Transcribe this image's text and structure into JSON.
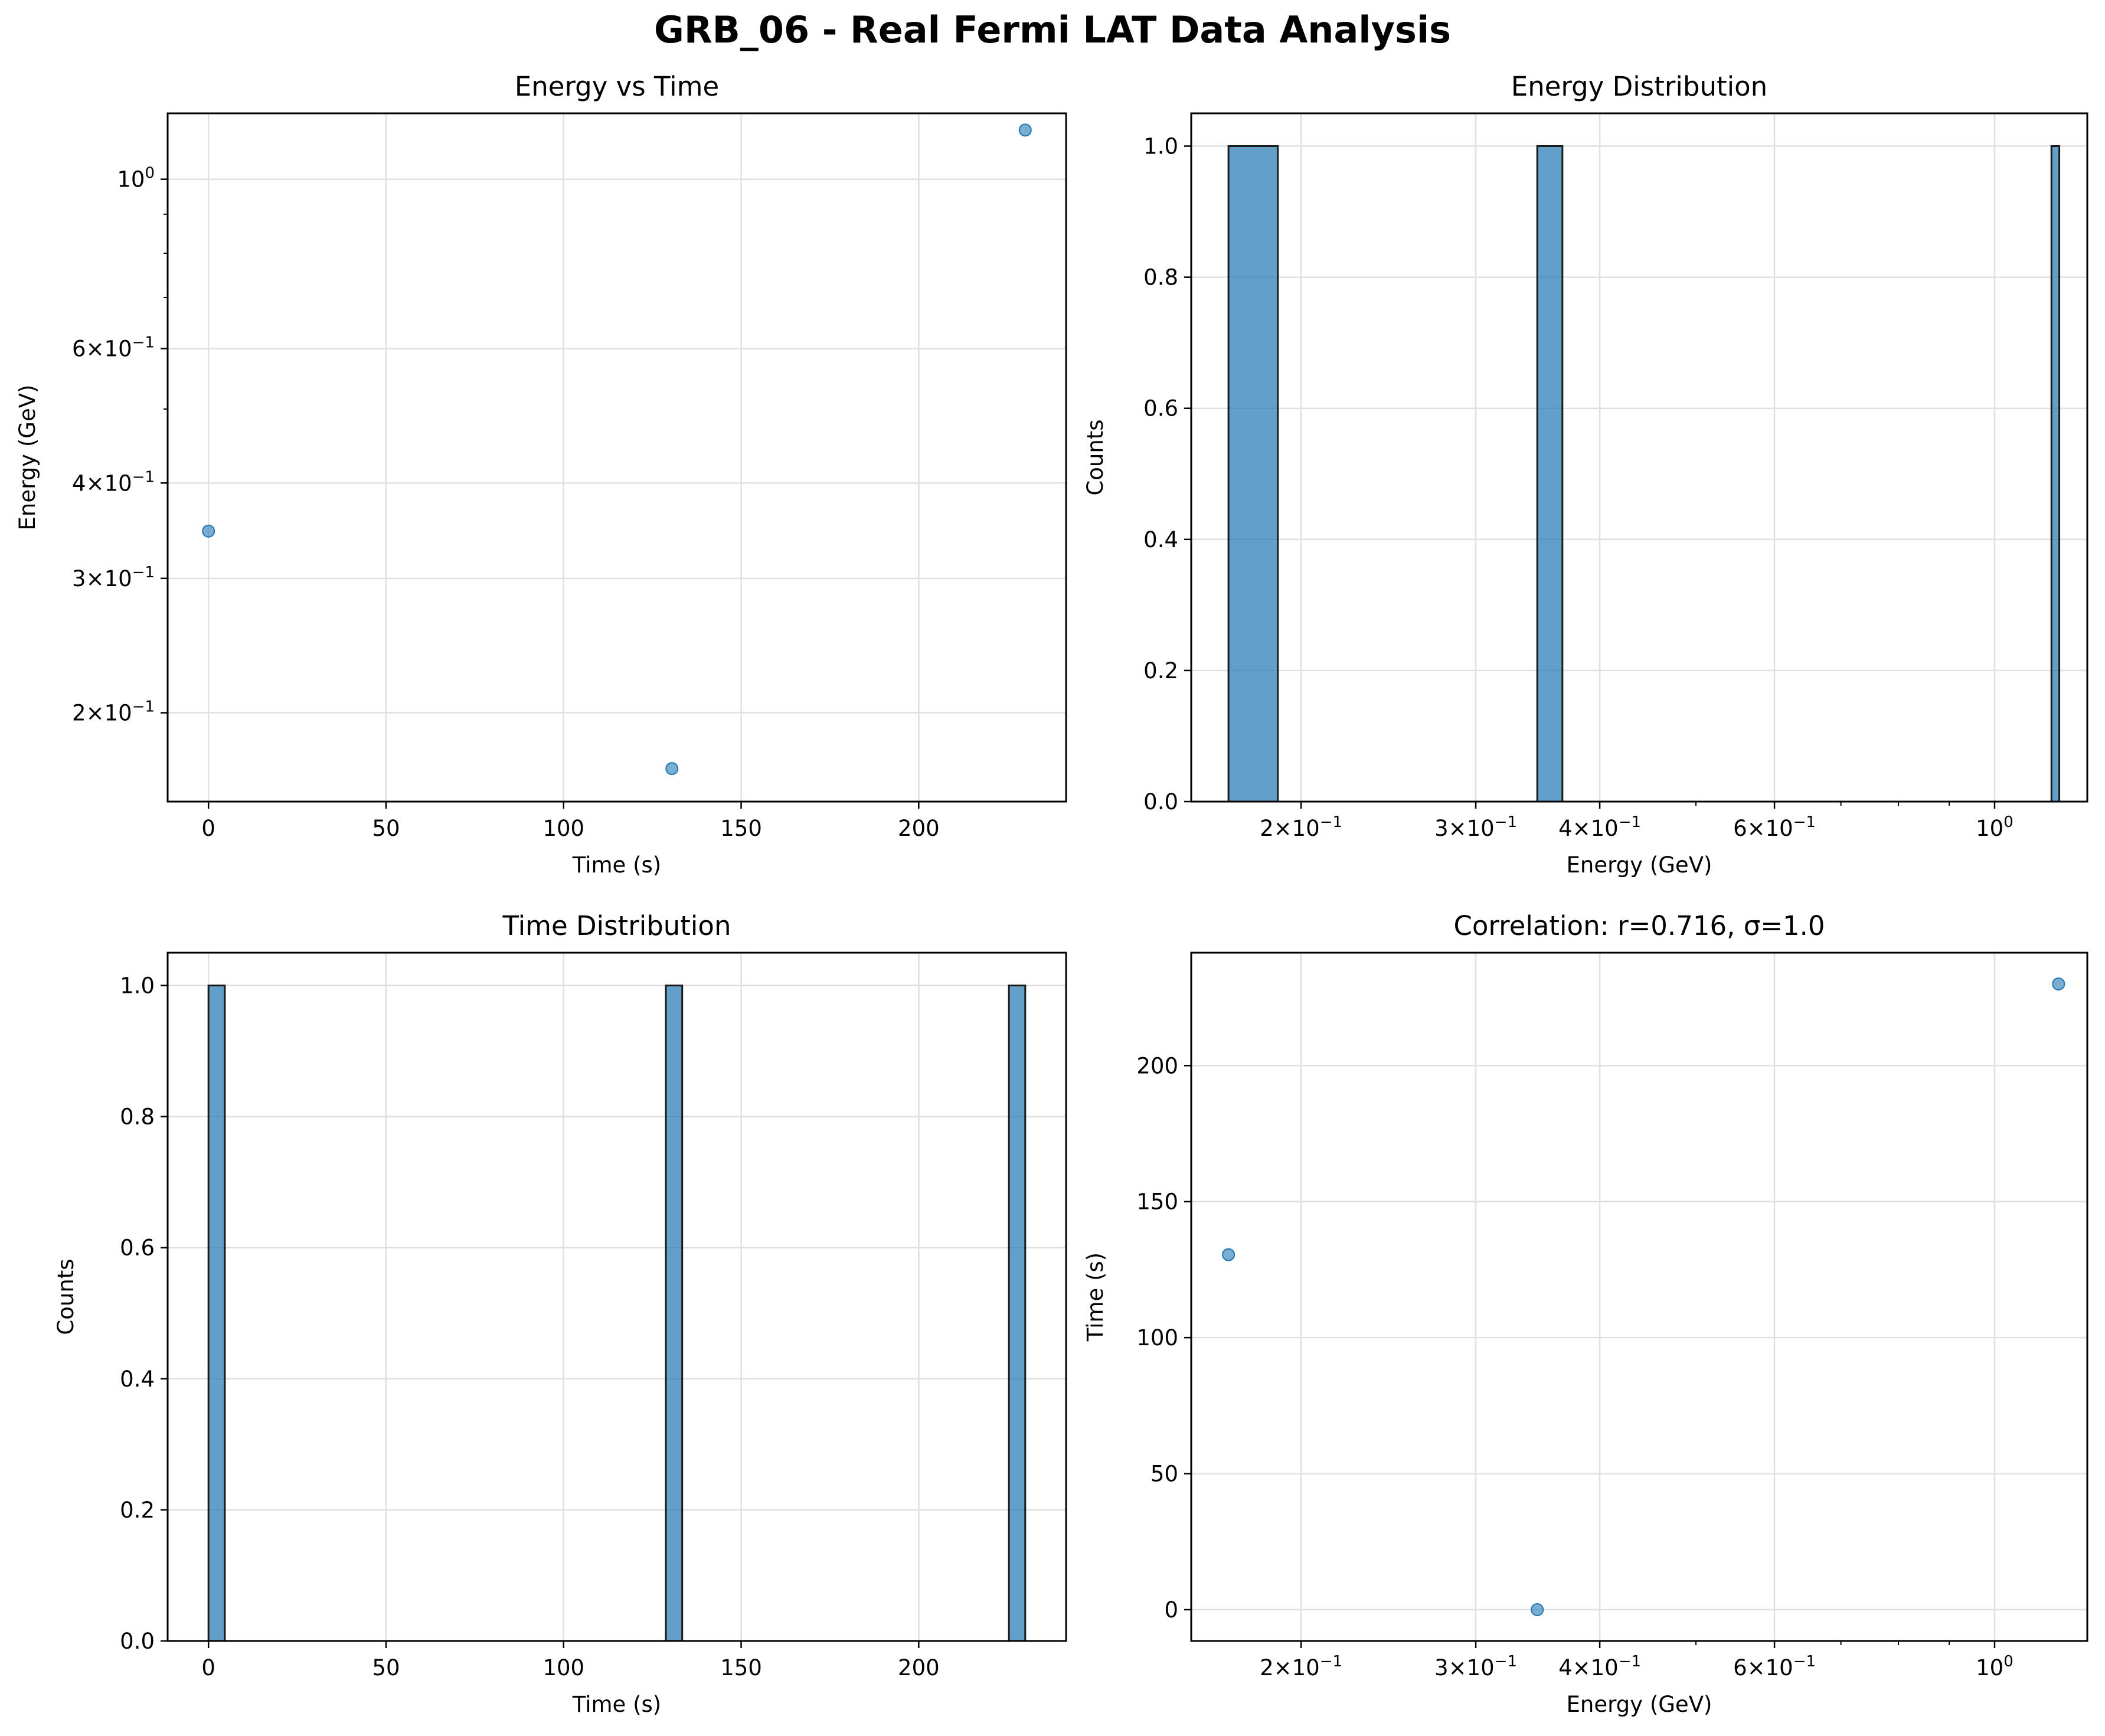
{
  "figure": {
    "title": "GRB_06 - Real Fermi LAT Data Analysis"
  },
  "colors": {
    "marker": "#1f77b4",
    "bar": "#1f77b4",
    "bar_edge": "#1a1a1a",
    "grid": "#e0e0e0"
  },
  "chart_data": [
    {
      "id": "energy-vs-time",
      "type": "scatter",
      "title": "Energy vs Time",
      "xlabel": "Time (s)",
      "ylabel": "Energy (GeV)",
      "xscale": "linear",
      "yscale": "log",
      "xlim": [
        -11.5,
        241.5
      ],
      "ylim": [
        0.153,
        1.22
      ],
      "xticks": [
        0,
        50,
        100,
        150,
        200
      ],
      "yticks": [
        {
          "value": 0.2,
          "mant": "2",
          "exp": "-1"
        },
        {
          "value": 0.3,
          "mant": "3",
          "exp": "-1"
        },
        {
          "value": 0.4,
          "mant": "4",
          "exp": "-1"
        },
        {
          "value": 0.6,
          "mant": "6",
          "exp": "-1"
        },
        {
          "value": 1.0,
          "mant": "",
          "exp": "0"
        }
      ],
      "points": [
        {
          "x": 0,
          "y": 0.346
        },
        {
          "x": 130.5,
          "y": 0.169
        },
        {
          "x": 230.0,
          "y": 1.16
        }
      ],
      "grid": true
    },
    {
      "id": "energy-distribution",
      "type": "bar",
      "title": "Energy Distribution",
      "xlabel": "Energy (GeV)",
      "ylabel": "Counts",
      "xscale": "log",
      "yscale": "linear",
      "xlim": [
        0.155,
        1.24
      ],
      "ylim": [
        0,
        1.05
      ],
      "xticks": [
        {
          "value": 0.2,
          "mant": "2",
          "exp": "-1"
        },
        {
          "value": 0.3,
          "mant": "3",
          "exp": "-1"
        },
        {
          "value": 0.4,
          "mant": "4",
          "exp": "-1"
        },
        {
          "value": 0.6,
          "mant": "6",
          "exp": "-1"
        },
        {
          "value": 1.0,
          "mant": "",
          "exp": "0"
        }
      ],
      "yticks": [
        0.0,
        0.2,
        0.4,
        0.6,
        0.8,
        1.0
      ],
      "bins": [
        {
          "x0": 0.169,
          "x1": 0.1895,
          "count": 1
        },
        {
          "x0": 0.346,
          "x1": 0.3668,
          "count": 1
        },
        {
          "x0": 1.141,
          "x1": 1.162,
          "count": 1
        }
      ],
      "grid": true
    },
    {
      "id": "time-distribution",
      "type": "bar",
      "title": "Time Distribution",
      "xlabel": "Time (s)",
      "ylabel": "Counts",
      "xscale": "linear",
      "yscale": "linear",
      "xlim": [
        -11.5,
        241.5
      ],
      "ylim": [
        0,
        1.05
      ],
      "xticks": [
        0,
        50,
        100,
        150,
        200
      ],
      "yticks": [
        0.0,
        0.2,
        0.4,
        0.6,
        0.8,
        1.0
      ],
      "bins": [
        {
          "x0": 0,
          "x1": 4.6,
          "count": 1
        },
        {
          "x0": 128.8,
          "x1": 133.4,
          "count": 1
        },
        {
          "x0": 225.4,
          "x1": 230.0,
          "count": 1
        }
      ],
      "grid": true
    },
    {
      "id": "correlation",
      "type": "scatter",
      "title": "Correlation: r=0.716, σ=1.0",
      "xlabel": "Energy (GeV)",
      "ylabel": "Time (s)",
      "xscale": "log",
      "yscale": "linear",
      "xlim": [
        0.155,
        1.24
      ],
      "ylim": [
        -11.5,
        241.5
      ],
      "xticks": [
        {
          "value": 0.2,
          "mant": "2",
          "exp": "-1"
        },
        {
          "value": 0.3,
          "mant": "3",
          "exp": "-1"
        },
        {
          "value": 0.4,
          "mant": "4",
          "exp": "-1"
        },
        {
          "value": 0.6,
          "mant": "6",
          "exp": "-1"
        },
        {
          "value": 1.0,
          "mant": "",
          "exp": "0"
        }
      ],
      "yticks": [
        0,
        50,
        100,
        150,
        200
      ],
      "points": [
        {
          "x": 0.169,
          "y": 130.5
        },
        {
          "x": 0.346,
          "y": 0
        },
        {
          "x": 1.16,
          "y": 230.0
        }
      ],
      "grid": true
    }
  ]
}
